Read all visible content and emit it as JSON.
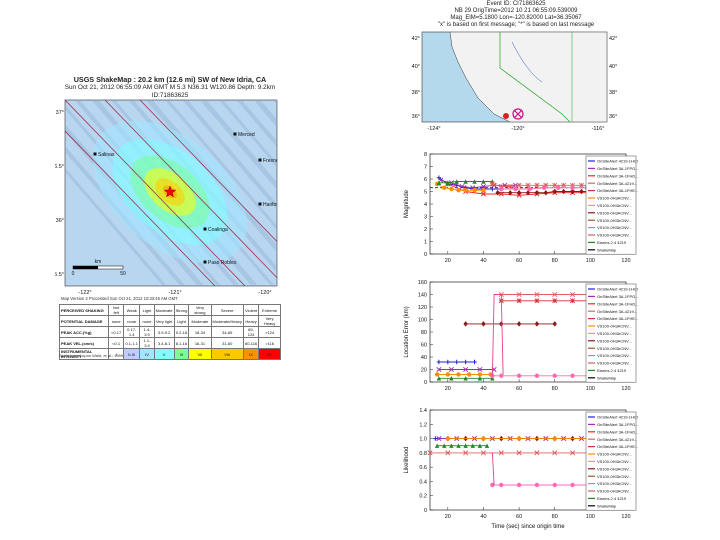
{
  "shakemap": {
    "title_lines": [
      "USGS ShakeMap : 20.2 km (12.6 mi) SW of New Idria, CA",
      "Sun Oct 21, 2012 06:55:09 AM GMT   M 5.3   N36.31 W120.86   Depth: 9.2km   ID:71863625"
    ],
    "lat_labels": [
      "37°",
      "36.5°",
      "36°",
      "35.5°"
    ],
    "lon_labels": [
      "-122°",
      "-121°",
      "-120°"
    ],
    "scale_label": "km",
    "scale_ticks": [
      "0",
      "50"
    ],
    "city_labels": [
      "Merced",
      "Fresno",
      "Coalinga",
      "Paso Robles",
      "Salinas",
      "Hanford"
    ],
    "credit": "Map Version 2 Processed Sun Oct 21, 2012 10:33:45 AM GMT",
    "legend": {
      "rows": [
        {
          "label": "PERCEIVED SHAKING",
          "cells": [
            "Not felt",
            "Weak",
            "Light",
            "Moderate",
            "Strong",
            "Very strong",
            "Severe",
            "Violent",
            "Extreme"
          ]
        },
        {
          "label": "POTENTIAL DAMAGE",
          "cells": [
            "none",
            "none",
            "none",
            "Very light",
            "Light",
            "Moderate",
            "Moderate/Heavy",
            "Heavy",
            "Very Heavy"
          ]
        },
        {
          "label": "PEAK ACC.(%g)",
          "cells": [
            "<0.17",
            "0.17-1.4",
            "1.4-3.9",
            "3.9-9.2",
            "9.2-18",
            "18-34",
            "34-65",
            "65-124",
            ">124"
          ]
        },
        {
          "label": "PEAK VEL.(cm/s)",
          "cells": [
            "<0.1",
            "0.1-1.1",
            "1.1-3.4",
            "3.4-8.1",
            "8.1-16",
            "16-31",
            "31-60",
            "60-116",
            ">116"
          ]
        },
        {
          "label": "INSTRUMENTAL INTENSITY",
          "cells": [
            "I",
            "II-III",
            "IV",
            "V",
            "VI",
            "VII",
            "VIII",
            "IX",
            "X+"
          ]
        }
      ],
      "colors": [
        "#ffffff",
        "#bfccff",
        "#a0e6ff",
        "#80ffff",
        "#7aff93",
        "#ffff00",
        "#ffc800",
        "#ff9100",
        "#ff0000"
      ]
    },
    "footer": "Scale based upon Wald, et al.; 1999",
    "colors": {
      "land": "#b8d6f0",
      "ridge": "#88aacc",
      "fault": "#a0304a",
      "epicenter": "#ff0000"
    }
  },
  "event_map": {
    "title_lines": [
      "Event ID: CI71863625",
      "NB 29 OrigTime=2012 10 21 06:55:09.539009",
      "Mag_ElM=5.1800 Lon=-120.82000 Lat=36.35067",
      "\"x\" is based on first message; \"*\" is based on last message"
    ],
    "lat_labels": [
      "42°",
      "40°",
      "38°",
      "36°"
    ],
    "lon_labels": [
      "-124°",
      "-120°",
      "-116°"
    ],
    "colors": {
      "ocean": "#b4d9ec",
      "land": "#f2f2f2",
      "border": "#1aa01a",
      "quake": "#cc1188"
    }
  },
  "chart_data": [
    {
      "type": "line",
      "panel": "magnitude",
      "ylabel": "Magnitude",
      "xlabel": "",
      "xlim": [
        10,
        120
      ],
      "ylim": [
        0,
        8
      ],
      "x_ticks": [
        20,
        40,
        60,
        80,
        100,
        120
      ],
      "y_ticks": [
        0,
        1,
        2,
        3,
        4,
        5,
        6,
        7,
        8
      ],
      "x_tick_labels": [
        "20",
        "40",
        "60",
        "80",
        "100",
        "120"
      ],
      "y_tick_labels": [
        "0",
        "1",
        "2",
        "3",
        "4",
        "5",
        "6",
        "7",
        "8"
      ],
      "reference_line": {
        "value": 5.3,
        "style": "dashed"
      },
      "series": [
        {
          "color": "#1f1fd0",
          "marker": "plus",
          "x": [
            15,
            20,
            25,
            30,
            35,
            40,
            45,
            50
          ],
          "y": [
            6.1,
            5.6,
            5.5,
            5.3,
            5.2,
            5.2,
            5.2,
            5.2
          ]
        },
        {
          "color": "#9b2fb0",
          "marker": "x",
          "x": [
            16,
            22,
            28,
            34,
            40,
            46,
            52,
            58
          ],
          "y": [
            5.9,
            5.7,
            5.4,
            5.3,
            5.4,
            5.5,
            5.5,
            5.5
          ]
        },
        {
          "color": "#ff2222",
          "marker": "x",
          "x": [
            20,
            30,
            40,
            50,
            60,
            70,
            80,
            90,
            100
          ],
          "y": [
            5.6,
            5.0,
            4.8,
            4.8,
            4.7,
            4.8,
            4.9,
            4.9,
            4.9
          ]
        },
        {
          "color": "#ff8c00",
          "marker": "circle",
          "x": [
            14,
            18,
            22,
            26,
            30,
            35,
            40
          ],
          "y": [
            5.6,
            5.3,
            5.2,
            5.1,
            5.1,
            5.1,
            5.1
          ]
        },
        {
          "color": "#228822",
          "marker": "triangle",
          "x": [
            15,
            20,
            25,
            30,
            35,
            40,
            45
          ],
          "y": [
            5.7,
            5.7,
            5.8,
            5.8,
            5.8,
            5.8,
            5.8
          ]
        },
        {
          "color": "#e06060",
          "marker": "star",
          "x": [
            45,
            50,
            55,
            60,
            65,
            70,
            75,
            80,
            85,
            90,
            95,
            100,
            105
          ],
          "y": [
            5.6,
            5.4,
            5.4,
            5.5,
            5.5,
            5.5,
            5.5,
            5.5,
            5.5,
            5.5,
            5.5,
            5.5,
            5.5
          ]
        },
        {
          "color": "#8b1a1a",
          "marker": "diamond",
          "x": [
            48,
            55,
            60,
            65,
            70,
            75,
            80,
            85,
            90,
            95,
            100
          ],
          "y": [
            4.9,
            4.9,
            4.9,
            4.9,
            4.9,
            4.9,
            5.0,
            5.0,
            5.0,
            5.0,
            5.0
          ]
        },
        {
          "color": "#ff69b4",
          "marker": "circle",
          "x": [
            50,
            58,
            66,
            74,
            82,
            90,
            98,
            106
          ],
          "y": [
            5.2,
            5.2,
            5.2,
            5.3,
            5.3,
            5.3,
            5.3,
            5.3
          ]
        }
      ]
    },
    {
      "type": "line",
      "panel": "location-error",
      "ylabel": "Location Error (km)",
      "xlabel": "",
      "xlim": [
        10,
        120
      ],
      "ylim": [
        0,
        160
      ],
      "x_ticks": [
        20,
        40,
        60,
        80,
        100,
        120
      ],
      "y_ticks": [
        0,
        20,
        40,
        60,
        80,
        100,
        120,
        140,
        160
      ],
      "x_tick_labels": [
        "20",
        "40",
        "60",
        "80",
        "100",
        "120"
      ],
      "y_tick_labels": [
        "0",
        "20",
        "40",
        "60",
        "80",
        "100",
        "120",
        "140",
        "160"
      ],
      "series": [
        {
          "color": "#1f1fd0",
          "marker": "plus",
          "x": [
            15,
            20,
            25,
            30,
            35
          ],
          "y": [
            32,
            32,
            32,
            32,
            32
          ]
        },
        {
          "color": "#9b2fb0",
          "marker": "x",
          "x": [
            15,
            22,
            30,
            38,
            46
          ],
          "y": [
            20,
            20,
            20,
            20,
            20
          ]
        },
        {
          "color": "#ff8c00",
          "marker": "circle",
          "x": [
            14,
            20,
            26,
            32,
            38,
            44
          ],
          "y": [
            12,
            12,
            12,
            12,
            12,
            12
          ]
        },
        {
          "color": "#228822",
          "marker": "triangle",
          "x": [
            15,
            22,
            30,
            38,
            45
          ],
          "y": [
            6,
            6,
            6,
            6,
            6
          ]
        },
        {
          "color": "#8b1a1a",
          "marker": "diamond",
          "x": [
            30,
            40,
            50,
            60,
            70,
            80
          ],
          "y": [
            93,
            93,
            93,
            93,
            93,
            93
          ]
        },
        {
          "color": "#e06060",
          "marker": "x",
          "x": [
            50,
            60,
            70,
            80,
            90,
            100
          ],
          "y": [
            140,
            140,
            140,
            140,
            140,
            140
          ]
        },
        {
          "color": "#cc3333",
          "marker": "star",
          "x": [
            50,
            60,
            70,
            80,
            90,
            100
          ],
          "y": [
            130,
            130,
            130,
            130,
            130,
            130
          ]
        },
        {
          "color": "#ff69b4",
          "marker": "circle",
          "x": [
            45,
            50,
            60,
            70,
            80,
            90,
            100
          ],
          "y": [
            10,
            10,
            10,
            10,
            10,
            10,
            10
          ]
        },
        {
          "color": "#e83e8c",
          "marker": "none",
          "x": [
            45,
            46,
            50,
            51
          ],
          "y": [
            10,
            140,
            140,
            12
          ]
        }
      ]
    },
    {
      "type": "line",
      "panel": "likelihood",
      "ylabel": "Likelihood",
      "xlabel": "Time (sec) since origin time",
      "xlim": [
        10,
        120
      ],
      "ylim": [
        0,
        1.4
      ],
      "x_ticks": [
        20,
        40,
        60,
        80,
        100,
        120
      ],
      "y_ticks": [
        0,
        0.2,
        0.4,
        0.6,
        0.8,
        1.0,
        1.2,
        1.4
      ],
      "x_tick_labels": [
        "20",
        "40",
        "60",
        "80",
        "100",
        "120"
      ],
      "y_tick_labels": [
        "0",
        "0.2",
        "0.4",
        "0.6",
        "0.8",
        "1.0",
        "1.2",
        "1.4"
      ],
      "series": [
        {
          "color": "#1f1fd0",
          "marker": "plus",
          "x": [
            13,
            20,
            30,
            40,
            50,
            60,
            70,
            80,
            90,
            100
          ],
          "y": [
            1.0,
            1.0,
            1.0,
            1.0,
            1.0,
            1.0,
            1.0,
            1.0,
            1.0,
            1.0
          ]
        },
        {
          "color": "#9b2fb0",
          "marker": "x",
          "x": [
            15,
            25,
            35,
            45,
            55,
            65,
            75,
            85,
            95
          ],
          "y": [
            1.0,
            1.0,
            1.0,
            1.0,
            1.0,
            1.0,
            1.0,
            1.0,
            1.0
          ]
        },
        {
          "color": "#8b1a1a",
          "marker": "diamond",
          "x": [
            20,
            30,
            40,
            50,
            60,
            70,
            80,
            90,
            100
          ],
          "y": [
            1.0,
            1.0,
            1.0,
            1.0,
            1.0,
            1.0,
            1.0,
            1.0,
            1.0
          ]
        },
        {
          "color": "#ff8c00",
          "marker": "circle",
          "x": [
            20,
            40,
            60,
            80,
            100
          ],
          "y": [
            1.0,
            1.0,
            1.0,
            1.0,
            1.0
          ]
        },
        {
          "color": "#228822",
          "marker": "triangle",
          "x": [
            14,
            18,
            22,
            26,
            30,
            34,
            38,
            42
          ],
          "y": [
            0.9,
            0.9,
            0.9,
            0.9,
            0.9,
            0.9,
            0.9,
            0.9
          ]
        },
        {
          "color": "#e06060",
          "marker": "x",
          "x": [
            10,
            20,
            30,
            40,
            50,
            60,
            70,
            80,
            90,
            100
          ],
          "y": [
            0.8,
            0.8,
            0.8,
            0.8,
            0.8,
            0.8,
            0.8,
            0.8,
            0.8,
            0.8
          ]
        },
        {
          "color": "#ff69b4",
          "marker": "circle",
          "x": [
            45,
            50,
            60,
            70,
            80,
            90,
            100
          ],
          "y": [
            0.35,
            0.35,
            0.35,
            0.35,
            0.35,
            0.35,
            0.35
          ]
        },
        {
          "color": "#e83e8c",
          "marker": "none",
          "x": [
            44,
            45,
            46
          ],
          "y": [
            0.8,
            0.8,
            0.35
          ]
        }
      ]
    }
  ],
  "legend_series": [
    {
      "name": "OnSiteAlert 4219-1HCI",
      "color": "#1f1fd0"
    },
    {
      "name": "OnSiteAlert 3A-1FPG...",
      "color": "#9b2fb0"
    },
    {
      "name": "OnSiteAlert 3A-1FHD...",
      "color": "#ff2222"
    },
    {
      "name": "OnSiteAlert 3A-4219...",
      "color": "#e06060"
    },
    {
      "name": "OnSiteAlert 3A-1FHE...",
      "color": "#cc3333"
    },
    {
      "name": "VS100-0H3ACNV...",
      "color": "#ff8c00"
    },
    {
      "name": "VS100-0H3ACNV...",
      "color": "#ffa500"
    },
    {
      "name": "VS100-0H3ACNV...",
      "color": "#8b1a1a"
    },
    {
      "name": "VS100-0H3ACNV...",
      "color": "#a0522d"
    },
    {
      "name": "VS100-0H3ACNV...",
      "color": "#ff69b4"
    },
    {
      "name": "VS100-0H3ACNV...",
      "color": "#cd5c5c"
    },
    {
      "name": "Elarms 2.4 4219",
      "color": "#228822"
    },
    {
      "name": "ShakeMap",
      "color": "#000000"
    }
  ]
}
